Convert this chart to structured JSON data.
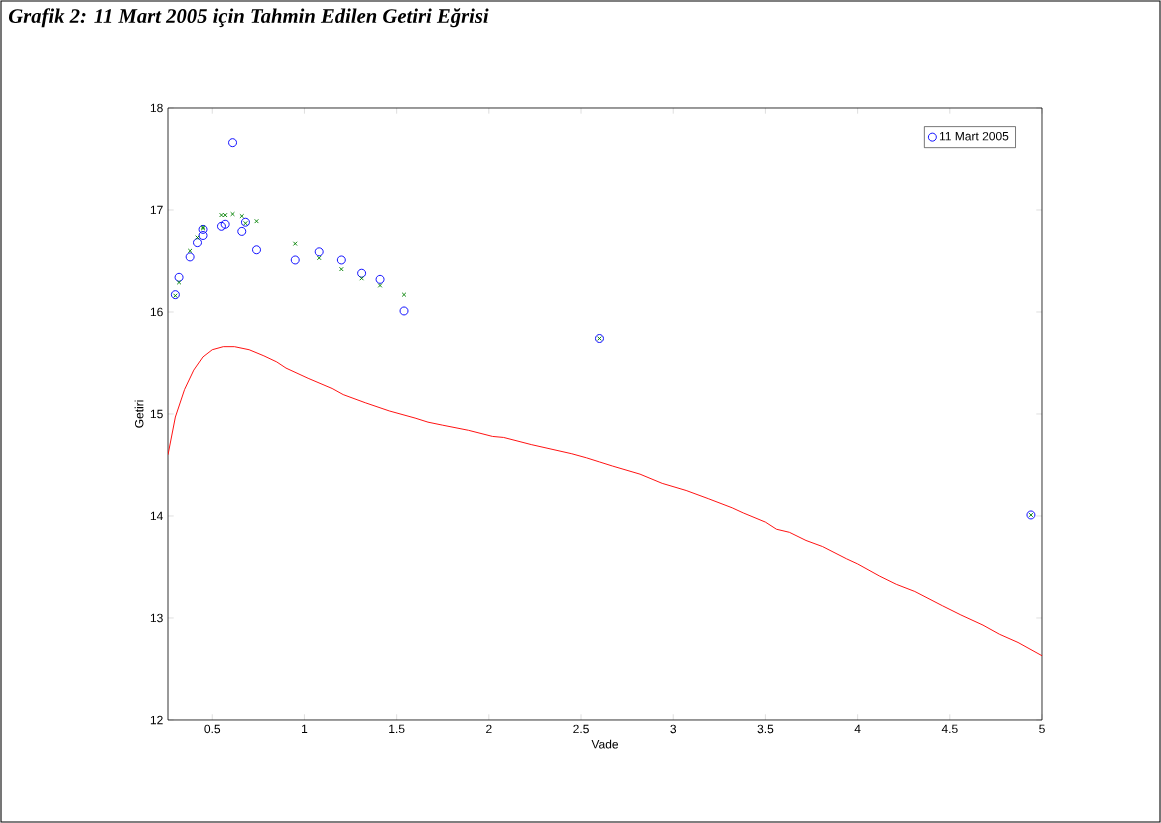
{
  "chart_data": {
    "type": "scatter",
    "title": "Grafik 2: 11 Mart 2005 için Tahmin Edilen Getiri Eğrisi",
    "xlabel": "Vade",
    "ylabel": "Getiri",
    "xlim": [
      0.26,
      5
    ],
    "ylim": [
      12,
      18
    ],
    "xticks": [
      0.5,
      1,
      1.5,
      2,
      2.5,
      3,
      3.5,
      4,
      4.5,
      5
    ],
    "yticks": [
      12,
      13,
      14,
      15,
      16,
      17,
      18
    ],
    "legend": "top right",
    "series": [
      {
        "name": "11 Mart 2005",
        "marker": "circle",
        "color": "#0000ff",
        "x": [
          0.3,
          0.32,
          0.38,
          0.42,
          0.45,
          0.45,
          0.55,
          0.57,
          0.61,
          0.66,
          0.68,
          0.74,
          0.95,
          1.08,
          1.2,
          1.31,
          1.41,
          1.54,
          2.6,
          4.94
        ],
        "values": [
          16.17,
          16.34,
          16.54,
          16.68,
          16.75,
          16.81,
          16.84,
          16.86,
          17.66,
          16.79,
          16.88,
          16.61,
          16.51,
          16.59,
          16.51,
          16.38,
          16.32,
          16.01,
          15.74,
          14.01
        ]
      },
      {
        "marker": "cross",
        "color": "#008000",
        "x": [
          0.3,
          0.32,
          0.38,
          0.42,
          0.45,
          0.45,
          0.55,
          0.57,
          0.61,
          0.66,
          0.68,
          0.74,
          0.95,
          1.08,
          1.2,
          1.31,
          1.41,
          1.54,
          2.6,
          4.94
        ],
        "values": [
          16.16,
          16.29,
          16.6,
          16.73,
          16.82,
          16.83,
          16.95,
          16.95,
          16.96,
          16.94,
          16.87,
          16.89,
          16.67,
          16.53,
          16.42,
          16.33,
          16.26,
          16.17,
          15.74,
          14.01
        ]
      },
      {
        "type": "line",
        "marker": "none",
        "color": "#ff0000",
        "x": [
          0.26,
          0.3,
          0.35,
          0.4,
          0.45,
          0.5,
          0.56,
          0.62,
          0.7,
          0.78,
          0.85,
          0.9,
          1.02,
          1.15,
          1.21,
          1.33,
          1.46,
          1.6,
          1.67,
          1.75,
          1.89,
          2.02,
          2.08,
          2.23,
          2.45,
          2.53,
          2.6,
          2.67,
          2.82,
          2.94,
          3.07,
          3.19,
          3.32,
          3.38,
          3.5,
          3.56,
          3.63,
          3.72,
          3.81,
          3.94,
          4.0,
          4.12,
          4.21,
          4.31,
          4.46,
          4.56,
          4.68,
          4.77,
          4.87,
          5.0
        ],
        "values": [
          14.6,
          14.97,
          15.24,
          15.43,
          15.56,
          15.63,
          15.66,
          15.66,
          15.63,
          15.57,
          15.51,
          15.45,
          15.35,
          15.25,
          15.19,
          15.11,
          15.03,
          14.96,
          14.92,
          14.89,
          14.84,
          14.78,
          14.77,
          14.7,
          14.61,
          14.57,
          14.53,
          14.49,
          14.41,
          14.32,
          14.25,
          14.17,
          14.08,
          14.03,
          13.94,
          13.87,
          13.84,
          13.76,
          13.7,
          13.58,
          13.53,
          13.41,
          13.33,
          13.26,
          13.12,
          13.03,
          12.93,
          12.84,
          12.76,
          12.63
        ]
      }
    ]
  }
}
